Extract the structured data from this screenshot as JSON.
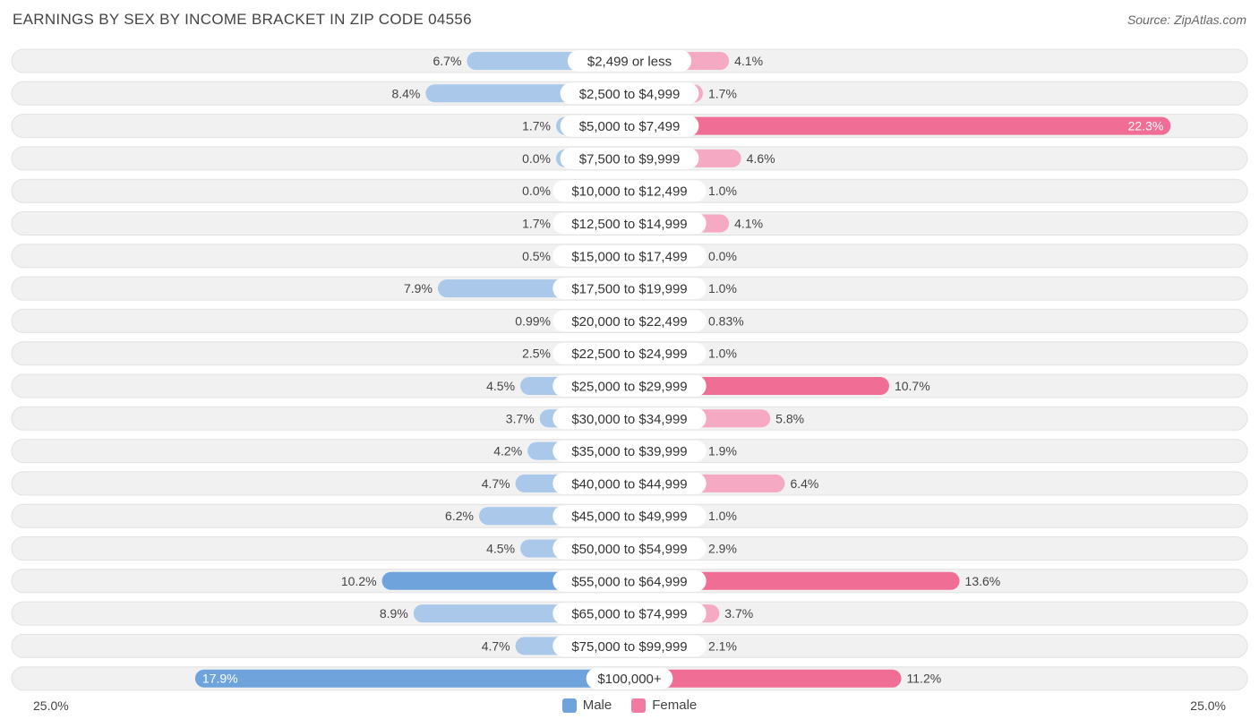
{
  "title": "EARNINGS BY SEX BY INCOME BRACKET IN ZIP CODE 04556",
  "source": "Source: ZipAtlas.com",
  "colors": {
    "male": "#6fa3dc",
    "male_light": "#a9c8ea",
    "female": "#f06d96",
    "female_light": "#f6a9c2",
    "row_bg": "#f1f1f1"
  },
  "axis": {
    "left_label": "25.0%",
    "right_label": "25.0%"
  },
  "legend": [
    {
      "name": "Male",
      "color": "#6fa3dc"
    },
    {
      "name": "Female",
      "color": "#f07aa0"
    }
  ],
  "chart_data": {
    "type": "bar",
    "orientation": "horizontal-diverging",
    "title": "EARNINGS BY SEX BY INCOME BRACKET IN ZIP CODE 04556",
    "xlim": [
      -25,
      25
    ],
    "categories": [
      "$2,499 or less",
      "$2,500 to $4,999",
      "$5,000 to $7,499",
      "$7,500 to $9,999",
      "$10,000 to $12,499",
      "$12,500 to $14,999",
      "$15,000 to $17,499",
      "$17,500 to $19,999",
      "$20,000 to $22,499",
      "$22,500 to $24,999",
      "$25,000 to $29,999",
      "$30,000 to $34,999",
      "$35,000 to $39,999",
      "$40,000 to $44,999",
      "$45,000 to $49,999",
      "$50,000 to $54,999",
      "$55,000 to $64,999",
      "$65,000 to $74,999",
      "$75,000 to $99,999",
      "$100,000+"
    ],
    "series": [
      {
        "name": "Male",
        "values": [
          6.7,
          8.4,
          1.7,
          0.0,
          0.0,
          1.7,
          0.5,
          7.9,
          0.99,
          2.5,
          4.5,
          3.7,
          4.2,
          4.7,
          6.2,
          4.5,
          10.2,
          8.9,
          4.7,
          17.9
        ],
        "labels": [
          "6.7%",
          "8.4%",
          "1.7%",
          "0.0%",
          "0.0%",
          "1.7%",
          "0.5%",
          "7.9%",
          "0.99%",
          "2.5%",
          "4.5%",
          "3.7%",
          "4.2%",
          "4.7%",
          "6.2%",
          "4.5%",
          "10.2%",
          "8.9%",
          "4.7%",
          "17.9%"
        ]
      },
      {
        "name": "Female",
        "values": [
          4.1,
          1.7,
          22.3,
          4.6,
          1.0,
          4.1,
          0.0,
          1.0,
          0.83,
          1.0,
          10.7,
          5.8,
          1.9,
          6.4,
          1.0,
          2.9,
          13.6,
          3.7,
          2.1,
          11.2
        ],
        "labels": [
          "4.1%",
          "1.7%",
          "22.3%",
          "4.6%",
          "1.0%",
          "4.1%",
          "0.0%",
          "1.0%",
          "0.83%",
          "1.0%",
          "10.7%",
          "5.8%",
          "1.9%",
          "6.4%",
          "1.0%",
          "2.9%",
          "13.6%",
          "3.7%",
          "2.1%",
          "11.2%"
        ]
      }
    ]
  }
}
